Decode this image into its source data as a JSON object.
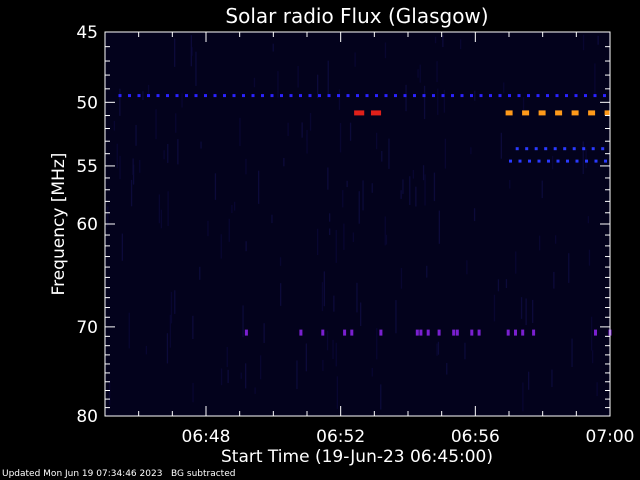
{
  "chart_data": {
    "type": "heatmap",
    "title": "Solar radio Flux (Glasgow)",
    "xlabel": "Start Time (19-Jun-23 06:45:00)",
    "ylabel": "Frequency [MHz]",
    "x_ticks": [
      {
        "minute": 3,
        "label": "06:48"
      },
      {
        "minute": 7,
        "label": "06:52"
      },
      {
        "minute": 11,
        "label": "06:56"
      },
      {
        "minute": 15,
        "label": "07:00"
      }
    ],
    "y_ticks": [
      {
        "mhz": 45,
        "label": "45"
      },
      {
        "mhz": 50,
        "label": "50"
      },
      {
        "mhz": 55,
        "label": "55"
      },
      {
        "mhz": 60,
        "label": "60"
      },
      {
        "mhz": 70,
        "label": "70"
      },
      {
        "mhz": 80,
        "label": "80"
      }
    ],
    "x_range_minutes": [
      0,
      15
    ],
    "y_range_mhz": [
      45,
      80
    ],
    "y_scale": "log",
    "features": [
      {
        "freq_mhz": 49.5,
        "t_start_min": 0.4,
        "t_end_min": 15,
        "color": "#2a22ff",
        "style": "dashed",
        "intensity": "low"
      },
      {
        "freq_mhz": 50.8,
        "t_start_min": 7.4,
        "t_end_min": 7.7,
        "color": "#e0201a",
        "style": "solid",
        "intensity": "high"
      },
      {
        "freq_mhz": 50.8,
        "t_start_min": 7.9,
        "t_end_min": 8.2,
        "color": "#e0201a",
        "style": "solid",
        "intensity": "high"
      },
      {
        "freq_mhz": 50.8,
        "t_start_min": 11.9,
        "t_end_min": 15,
        "color": "#ff9a1a",
        "style": "dashed",
        "intensity": "medium"
      },
      {
        "freq_mhz": 53.6,
        "t_start_min": 12.2,
        "t_end_min": 15,
        "color": "#2a3aff",
        "style": "dashed",
        "intensity": "low"
      },
      {
        "freq_mhz": 54.6,
        "t_start_min": 12.0,
        "t_end_min": 15,
        "color": "#2a3aff",
        "style": "dashed",
        "intensity": "low"
      },
      {
        "freq_mhz": 70.6,
        "t_start_min": 4.2,
        "t_end_min": 15,
        "color": "#7a20d0",
        "style": "sparse",
        "intensity": "low"
      }
    ],
    "colors": {
      "background": "#000000",
      "plot_background": "#03021c",
      "axes": "#ffffff"
    }
  },
  "footer": {
    "updated": "Updated Mon Jun 19 07:34:46 2023",
    "note": "BG subtracted"
  }
}
